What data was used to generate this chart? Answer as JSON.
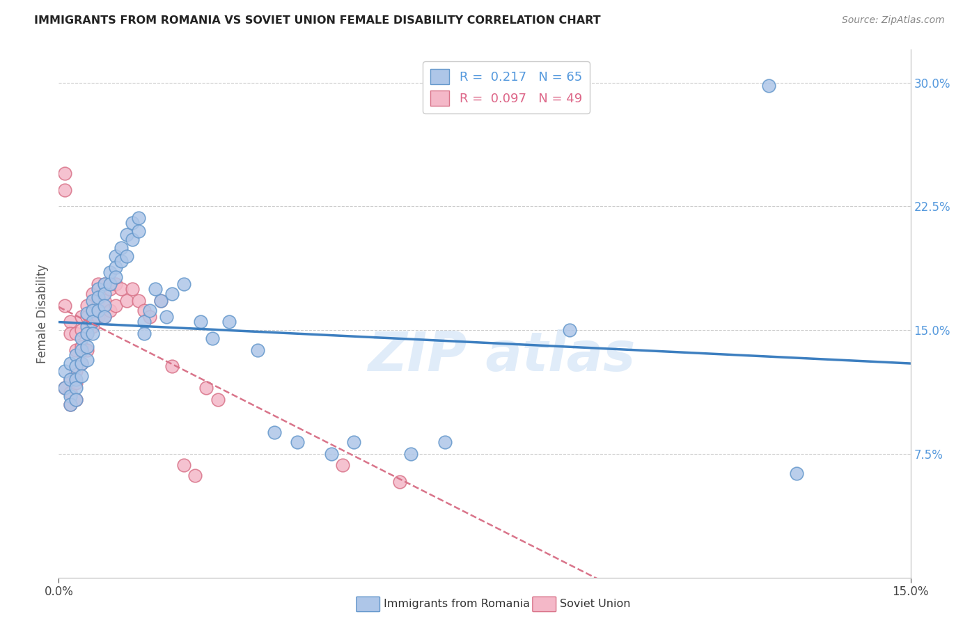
{
  "title": "IMMIGRANTS FROM ROMANIA VS SOVIET UNION FEMALE DISABILITY CORRELATION CHART",
  "source": "Source: ZipAtlas.com",
  "ylabel": "Female Disability",
  "ytick_vals": [
    0.075,
    0.15,
    0.225,
    0.3
  ],
  "xlim": [
    0.0,
    0.15
  ],
  "ylim": [
    0.0,
    0.32
  ],
  "romania_R": "0.217",
  "romania_N": "65",
  "soviet_R": "0.097",
  "soviet_N": "49",
  "romania_color": "#aec6e8",
  "romania_edge": "#6699cc",
  "soviet_color": "#f4b8c8",
  "soviet_edge": "#d9748a",
  "romania_line_color": "#3d7fc0",
  "soviet_line_color": "#d9748a",
  "watermark_text": "ZIP atlas",
  "romania_points_x": [
    0.001,
    0.001,
    0.002,
    0.002,
    0.002,
    0.002,
    0.003,
    0.003,
    0.003,
    0.003,
    0.003,
    0.004,
    0.004,
    0.004,
    0.004,
    0.005,
    0.005,
    0.005,
    0.005,
    0.005,
    0.006,
    0.006,
    0.006,
    0.006,
    0.007,
    0.007,
    0.007,
    0.008,
    0.008,
    0.008,
    0.008,
    0.009,
    0.009,
    0.01,
    0.01,
    0.01,
    0.011,
    0.011,
    0.012,
    0.012,
    0.013,
    0.013,
    0.014,
    0.014,
    0.015,
    0.015,
    0.016,
    0.017,
    0.018,
    0.019,
    0.02,
    0.022,
    0.025,
    0.027,
    0.03,
    0.035,
    0.038,
    0.042,
    0.048,
    0.052,
    0.062,
    0.068,
    0.09,
    0.125,
    0.13
  ],
  "romania_points_y": [
    0.125,
    0.115,
    0.13,
    0.12,
    0.11,
    0.105,
    0.135,
    0.128,
    0.12,
    0.115,
    0.108,
    0.145,
    0.138,
    0.13,
    0.122,
    0.16,
    0.152,
    0.148,
    0.14,
    0.132,
    0.168,
    0.162,
    0.155,
    0.148,
    0.175,
    0.17,
    0.162,
    0.178,
    0.172,
    0.165,
    0.158,
    0.185,
    0.178,
    0.195,
    0.188,
    0.182,
    0.2,
    0.192,
    0.208,
    0.195,
    0.215,
    0.205,
    0.218,
    0.21,
    0.155,
    0.148,
    0.162,
    0.175,
    0.168,
    0.158,
    0.172,
    0.178,
    0.155,
    0.145,
    0.155,
    0.138,
    0.088,
    0.082,
    0.075,
    0.082,
    0.075,
    0.082,
    0.15,
    0.298,
    0.063
  ],
  "soviet_points_x": [
    0.001,
    0.001,
    0.001,
    0.001,
    0.002,
    0.002,
    0.002,
    0.002,
    0.002,
    0.003,
    0.003,
    0.003,
    0.003,
    0.003,
    0.004,
    0.004,
    0.004,
    0.004,
    0.005,
    0.005,
    0.005,
    0.005,
    0.006,
    0.006,
    0.006,
    0.007,
    0.007,
    0.007,
    0.008,
    0.008,
    0.008,
    0.009,
    0.009,
    0.01,
    0.01,
    0.011,
    0.012,
    0.013,
    0.014,
    0.015,
    0.016,
    0.018,
    0.02,
    0.022,
    0.024,
    0.026,
    0.028,
    0.05,
    0.06
  ],
  "soviet_points_y": [
    0.245,
    0.235,
    0.165,
    0.115,
    0.155,
    0.148,
    0.12,
    0.112,
    0.105,
    0.148,
    0.138,
    0.125,
    0.118,
    0.108,
    0.158,
    0.15,
    0.14,
    0.13,
    0.165,
    0.158,
    0.148,
    0.138,
    0.172,
    0.162,
    0.152,
    0.178,
    0.168,
    0.158,
    0.178,
    0.168,
    0.158,
    0.175,
    0.162,
    0.178,
    0.165,
    0.175,
    0.168,
    0.175,
    0.168,
    0.162,
    0.158,
    0.168,
    0.128,
    0.068,
    0.062,
    0.115,
    0.108,
    0.068,
    0.058
  ]
}
